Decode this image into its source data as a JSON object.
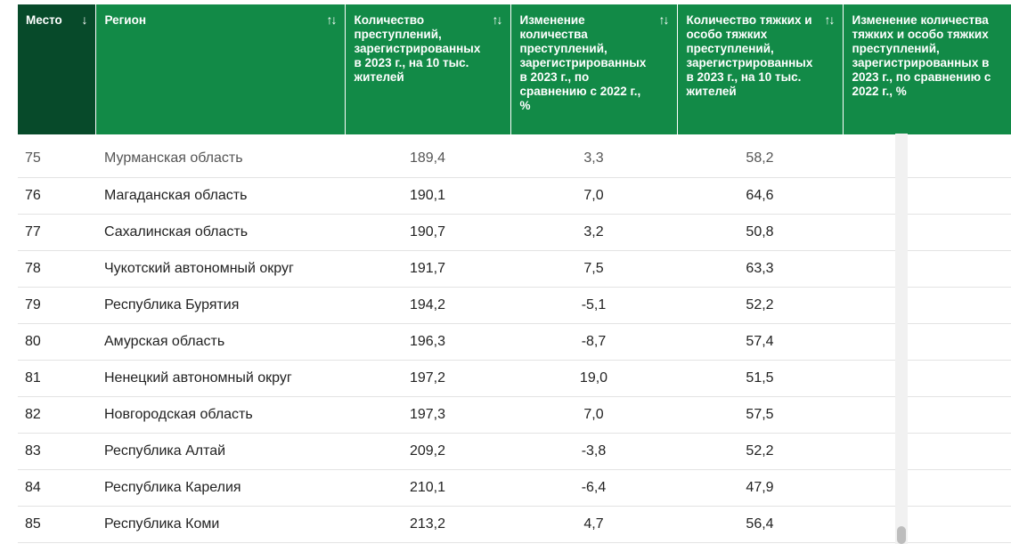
{
  "table": {
    "headers": [
      {
        "label": "Место",
        "sort": "↓"
      },
      {
        "label": "Регион",
        "sort": "↑↓"
      },
      {
        "label": "Количество преступлений, зарегистрированных в 2023 г., на 10 тыс. жителей",
        "sort": "↑↓"
      },
      {
        "label": "Изменение количества преступлений, зарегистрированных в 2023 г., по сравнению с 2022 г., %",
        "sort": "↑↓"
      },
      {
        "label": "Количество тяжких и особо тяжких преступлений, зарегистрированных в 2023 г., на 10 тыс. жителей",
        "sort": "↑↓"
      },
      {
        "label": "Изменение количества тяжких и особо тяжких преступлений, зарегистрированных в 2023 г., по сравнению с 2022 г., %",
        "sort": ""
      }
    ],
    "rows": [
      {
        "rank": "75",
        "region": "Мурманская область",
        "crimes": "189,4",
        "change": "3,3",
        "severe": "58,2"
      },
      {
        "rank": "76",
        "region": "Магаданская область",
        "crimes": "190,1",
        "change": "7,0",
        "severe": "64,6"
      },
      {
        "rank": "77",
        "region": "Сахалинская область",
        "crimes": "190,7",
        "change": "3,2",
        "severe": "50,8"
      },
      {
        "rank": "78",
        "region": "Чукотский автономный округ",
        "crimes": "191,7",
        "change": "7,5",
        "severe": "63,3"
      },
      {
        "rank": "79",
        "region": "Республика Бурятия",
        "crimes": "194,2",
        "change": "-5,1",
        "severe": "52,2"
      },
      {
        "rank": "80",
        "region": "Амурская область",
        "crimes": "196,3",
        "change": "-8,7",
        "severe": "57,4"
      },
      {
        "rank": "81",
        "region": "Ненецкий автономный округ",
        "crimes": "197,2",
        "change": "19,0",
        "severe": "51,5"
      },
      {
        "rank": "82",
        "region": "Новгородская область",
        "crimes": "197,3",
        "change": "7,0",
        "severe": "57,5"
      },
      {
        "rank": "83",
        "region": "Республика Алтай",
        "crimes": "209,2",
        "change": "-3,8",
        "severe": "52,2"
      },
      {
        "rank": "84",
        "region": "Республика Карелия",
        "crimes": "210,1",
        "change": "-6,4",
        "severe": "47,9"
      },
      {
        "rank": "85",
        "region": "Республика Коми",
        "crimes": "213,2",
        "change": "4,7",
        "severe": "56,4"
      }
    ]
  },
  "colors": {
    "header_green": "#128a47",
    "header_dark_green": "#074a2a"
  }
}
